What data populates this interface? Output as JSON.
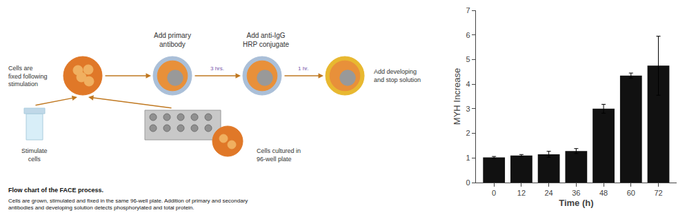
{
  "chart_data": {
    "type": "bar",
    "categories": [
      0,
      12,
      24,
      36,
      48,
      60,
      72
    ],
    "values": [
      1.02,
      1.1,
      1.15,
      1.28,
      3.0,
      4.35,
      4.75
    ],
    "errors": [
      0.04,
      0.04,
      0.12,
      0.1,
      0.18,
      0.1,
      1.2
    ],
    "color": "#111111",
    "xlabel": "Time (h)",
    "ylabel": "MYH Increase",
    "xlim": [
      -8,
      80
    ],
    "xticks": [
      0,
      12,
      24,
      36,
      48,
      60,
      72
    ],
    "ylim": [
      0,
      7
    ],
    "yticks": [
      0,
      1,
      2,
      3,
      4,
      5,
      6,
      7
    ],
    "grid": false,
    "annotations": [
      "Cells are\nfixed following\nstimulation",
      "Add primary\nantibody",
      "3 hrs.",
      "Add anti-IgG\nHRP conjugate",
      "1 hr.",
      "Add developing\nand stop solution",
      "Stimulate\ncells",
      "Cells cultured in\n96-well plate",
      "Flow chart of the FACE process.",
      "Cells are grown, stimulated and fixed in the same 96-well plate. Addition of primary and secondary\nantibodies and developing solution detects phosphorylated and total protein."
    ]
  }
}
